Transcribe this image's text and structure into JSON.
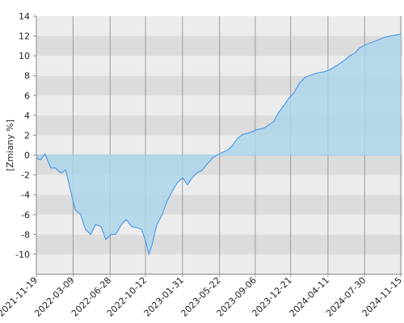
{
  "chart_data": {
    "type": "area",
    "y_label": "[Zmiany %]",
    "color": "#3a8fe8",
    "fill": "#a9d6ec",
    "band_colors": [
      "#ececec",
      "#dcdcdc"
    ],
    "xlim": [
      "2021-11-19",
      "2024-11-20"
    ],
    "xticks": [
      "2021-11-19",
      "2022-03-09",
      "2022-06-28",
      "2022-10-12",
      "2023-01-31",
      "2023-05-22",
      "2023-09-06",
      "2023-12-21",
      "2024-04-11",
      "2024-07-30",
      "2024-11-15"
    ],
    "ylim": [
      -12,
      14
    ],
    "yticks": [
      -10,
      -8,
      -6,
      -4,
      -2,
      0,
      2,
      4,
      6,
      8,
      10,
      12,
      14
    ],
    "x": [
      "2021-11-19",
      "2021-12-01",
      "2021-12-15",
      "2022-01-01",
      "2022-01-15",
      "2022-02-01",
      "2022-02-15",
      "2022-03-01",
      "2022-03-15",
      "2022-04-01",
      "2022-04-15",
      "2022-05-01",
      "2022-05-15",
      "2022-06-01",
      "2022-06-15",
      "2022-07-01",
      "2022-07-15",
      "2022-08-01",
      "2022-08-15",
      "2022-09-01",
      "2022-09-15",
      "2022-10-01",
      "2022-10-15",
      "2022-10-22",
      "2022-11-01",
      "2022-11-15",
      "2022-12-01",
      "2022-12-15",
      "2023-01-01",
      "2023-01-15",
      "2023-02-01",
      "2023-02-15",
      "2023-03-01",
      "2023-03-15",
      "2023-04-01",
      "2023-04-15",
      "2023-05-01",
      "2023-05-15",
      "2023-06-01",
      "2023-06-15",
      "2023-07-01",
      "2023-07-15",
      "2023-08-01",
      "2023-08-15",
      "2023-09-01",
      "2023-09-15",
      "2023-10-01",
      "2023-10-15",
      "2023-11-01",
      "2023-11-15",
      "2023-12-01",
      "2023-12-15",
      "2024-01-01",
      "2024-01-15",
      "2024-02-01",
      "2024-02-15",
      "2024-03-01",
      "2024-03-15",
      "2024-04-01",
      "2024-04-15",
      "2024-05-01",
      "2024-05-15",
      "2024-06-01",
      "2024-06-15",
      "2024-07-01",
      "2024-07-15",
      "2024-08-01",
      "2024-08-15",
      "2024-09-01",
      "2024-09-15",
      "2024-10-01",
      "2024-10-15",
      "2024-11-01",
      "2024-11-15"
    ],
    "values": [
      -0.3,
      -0.5,
      0.1,
      -1.3,
      -1.3,
      -1.8,
      -1.5,
      -3.5,
      -5.5,
      -6,
      -7.5,
      -8,
      -7,
      -7.2,
      -8.5,
      -8,
      -8,
      -7,
      -6.5,
      -7.2,
      -7.3,
      -7.5,
      -9,
      -10,
      -9,
      -7,
      -6,
      -4.7,
      -3.6,
      -2.8,
      -2.3,
      -3,
      -2.3,
      -1.8,
      -1.5,
      -0.9,
      -0.3,
      0,
      0.3,
      0.5,
      1,
      1.7,
      2.1,
      2.2,
      2.4,
      2.6,
      2.7,
      3,
      3.4,
      4.3,
      5,
      5.7,
      6.3,
      7.2,
      7.8,
      8,
      8.2,
      8.3,
      8.4,
      8.6,
      8.9,
      9.2,
      9.6,
      10,
      10.3,
      10.8,
      11.1,
      11.3,
      11.5,
      11.7,
      11.9,
      12,
      12.1,
      12.2
    ]
  }
}
